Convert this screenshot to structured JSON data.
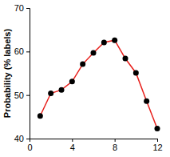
{
  "chart_data": {
    "type": "line",
    "y_label": "Probability (% labels)",
    "x": [
      1,
      2,
      3,
      4,
      5,
      6,
      7,
      8,
      9,
      10,
      11,
      12
    ],
    "series": [
      {
        "name": "Probability",
        "color": "#e8201c",
        "marker": "circle",
        "values": [
          45.2,
          50.4,
          51.2,
          53.1,
          57.1,
          59.7,
          62.1,
          62.6,
          58.4,
          55.1,
          48.6,
          42.3
        ]
      }
    ],
    "xlim": [
      0,
      12
    ],
    "xticks": [
      0,
      4,
      8,
      12
    ],
    "ylim": [
      40,
      70
    ],
    "yticks": [
      40,
      50,
      60,
      70
    ],
    "grid": false
  }
}
